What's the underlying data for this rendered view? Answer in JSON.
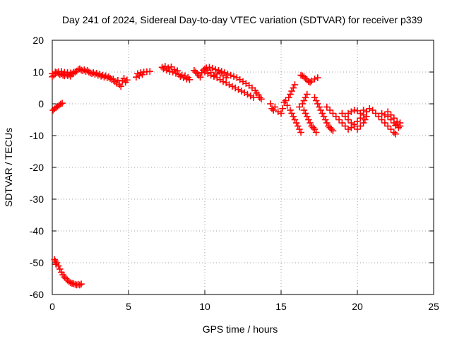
{
  "chart_data": {
    "type": "scatter",
    "title": "Day 241 of 2024, Sidereal Day-to-day VTEC variation (SDTVAR) for receiver p339",
    "xlabel": "GPS time / hours",
    "ylabel": "SDTVAR / TECUs",
    "xlim": [
      0,
      25
    ],
    "ylim": [
      -60,
      20
    ],
    "xticks": [
      0,
      5,
      10,
      15,
      20,
      25
    ],
    "yticks": [
      20,
      10,
      0,
      -10,
      -20,
      -30,
      -40,
      -50,
      -60
    ],
    "xtick_labels": [
      "0",
      "5",
      "10",
      "15",
      "20",
      "25"
    ],
    "ytick_labels": [
      "20",
      "10",
      "0",
      "-10",
      "-20",
      "-30",
      "-40",
      "-50",
      "-60"
    ],
    "grid": true,
    "marker": "+",
    "marker_color": "#ff0000",
    "series": [
      {
        "name": "SDTVAR",
        "points": [
          [
            0.0,
            8.5
          ],
          [
            0.1,
            9.0
          ],
          [
            0.2,
            9.5
          ],
          [
            0.3,
            9.8
          ],
          [
            0.4,
            9.6
          ],
          [
            0.5,
            9.2
          ],
          [
            0.6,
            9.5
          ],
          [
            0.7,
            9.0
          ],
          [
            0.8,
            8.8
          ],
          [
            0.9,
            9.3
          ],
          [
            1.0,
            8.9
          ],
          [
            1.1,
            9.1
          ],
          [
            1.2,
            8.7
          ],
          [
            1.3,
            9.4
          ],
          [
            1.4,
            9.6
          ],
          [
            1.5,
            10.0
          ],
          [
            1.6,
            10.3
          ],
          [
            1.7,
            10.8
          ],
          [
            1.8,
            11.0
          ],
          [
            1.9,
            10.6
          ],
          [
            2.0,
            10.4
          ],
          [
            2.1,
            10.7
          ],
          [
            2.2,
            10.2
          ],
          [
            2.3,
            10.5
          ],
          [
            2.4,
            10.0
          ],
          [
            2.5,
            9.7
          ],
          [
            2.6,
            9.5
          ],
          [
            2.7,
            9.8
          ],
          [
            2.8,
            9.3
          ],
          [
            2.9,
            9.6
          ],
          [
            3.0,
            9.0
          ],
          [
            3.1,
            9.3
          ],
          [
            3.2,
            8.7
          ],
          [
            3.3,
            9.0
          ],
          [
            3.4,
            8.4
          ],
          [
            3.5,
            8.8
          ],
          [
            3.6,
            8.2
          ],
          [
            3.7,
            8.5
          ],
          [
            3.8,
            8.0
          ],
          [
            3.9,
            7.6
          ],
          [
            4.0,
            7.8
          ],
          [
            4.1,
            7.0
          ],
          [
            4.2,
            6.5
          ],
          [
            4.3,
            7.4
          ],
          [
            4.4,
            6.0
          ],
          [
            4.5,
            5.5
          ],
          [
            4.6,
            7.2
          ],
          [
            4.7,
            8.0
          ],
          [
            4.8,
            6.8
          ],
          [
            4.9,
            7.5
          ],
          [
            0.0,
            9.5
          ],
          [
            0.2,
            10.0
          ],
          [
            0.4,
            10.1
          ],
          [
            0.6,
            10.2
          ],
          [
            0.8,
            9.9
          ],
          [
            1.0,
            9.8
          ],
          [
            1.2,
            9.7
          ],
          [
            1.4,
            9.9
          ],
          [
            0.05,
            -2.0
          ],
          [
            0.15,
            -1.6
          ],
          [
            0.25,
            -1.2
          ],
          [
            0.35,
            -0.8
          ],
          [
            0.45,
            -0.4
          ],
          [
            0.55,
            -0.1
          ],
          [
            0.65,
            0.2
          ],
          [
            5.6,
            9.5
          ],
          [
            5.8,
            9.8
          ],
          [
            6.0,
            10.0
          ],
          [
            6.2,
            10.1
          ],
          [
            6.4,
            10.2
          ],
          [
            5.5,
            8.4
          ],
          [
            5.7,
            8.8
          ],
          [
            5.9,
            9.2
          ],
          [
            7.2,
            11.5
          ],
          [
            7.3,
            11.0
          ],
          [
            7.4,
            11.8
          ],
          [
            7.5,
            10.6
          ],
          [
            7.6,
            11.3
          ],
          [
            7.7,
            10.2
          ],
          [
            7.8,
            11.6
          ],
          [
            7.9,
            10.0
          ],
          [
            8.0,
            10.8
          ],
          [
            8.1,
            9.6
          ],
          [
            8.2,
            10.4
          ],
          [
            8.3,
            9.2
          ],
          [
            8.4,
            8.6
          ],
          [
            8.5,
            9.0
          ],
          [
            8.6,
            8.2
          ],
          [
            8.7,
            8.8
          ],
          [
            8.8,
            7.8
          ],
          [
            8.9,
            8.3
          ],
          [
            9.0,
            7.6
          ],
          [
            9.3,
            10.5
          ],
          [
            9.4,
            10.0
          ],
          [
            9.5,
            9.6
          ],
          [
            9.6,
            9.0
          ],
          [
            9.7,
            8.4
          ],
          [
            9.8,
            9.8
          ],
          [
            9.9,
            10.6
          ],
          [
            10.0,
            11.0
          ],
          [
            10.1,
            11.3
          ],
          [
            10.2,
            10.6
          ],
          [
            10.3,
            11.5
          ],
          [
            10.4,
            9.8
          ],
          [
            10.5,
            11.2
          ],
          [
            10.6,
            9.0
          ],
          [
            10.7,
            10.8
          ],
          [
            10.8,
            8.2
          ],
          [
            10.9,
            10.5
          ],
          [
            11.0,
            7.6
          ],
          [
            11.1,
            10.2
          ],
          [
            11.2,
            7.0
          ],
          [
            11.3,
            9.8
          ],
          [
            11.4,
            6.6
          ],
          [
            11.5,
            9.4
          ],
          [
            11.6,
            6.0
          ],
          [
            11.7,
            9.0
          ],
          [
            11.8,
            5.5
          ],
          [
            11.9,
            8.6
          ],
          [
            12.0,
            5.0
          ],
          [
            12.1,
            8.2
          ],
          [
            12.2,
            4.5
          ],
          [
            12.3,
            7.6
          ],
          [
            12.4,
            4.0
          ],
          [
            12.5,
            7.0
          ],
          [
            12.6,
            3.5
          ],
          [
            12.7,
            6.4
          ],
          [
            12.8,
            3.0
          ],
          [
            12.9,
            5.8
          ],
          [
            13.0,
            2.5
          ],
          [
            13.1,
            5.0
          ],
          [
            13.2,
            2.0
          ],
          [
            13.3,
            4.2
          ],
          [
            13.4,
            3.4
          ],
          [
            13.5,
            2.8
          ],
          [
            13.6,
            2.0
          ],
          [
            13.7,
            1.5
          ],
          [
            10.0,
            10.0
          ],
          [
            10.2,
            9.5
          ],
          [
            10.4,
            9.0
          ],
          [
            10.6,
            8.6
          ],
          [
            10.8,
            9.4
          ],
          [
            11.0,
            9.8
          ],
          [
            11.2,
            8.8
          ],
          [
            11.4,
            8.2
          ],
          [
            14.3,
            0.0
          ],
          [
            14.4,
            -1.5
          ],
          [
            14.5,
            -2.0
          ],
          [
            14.6,
            -1.0
          ],
          [
            14.8,
            -2.5
          ],
          [
            15.0,
            -3.0
          ],
          [
            15.1,
            -1.5
          ],
          [
            15.2,
            0.5
          ],
          [
            15.3,
            1.0
          ],
          [
            15.4,
            -0.5
          ],
          [
            15.5,
            2.0
          ],
          [
            15.6,
            3.0
          ],
          [
            15.7,
            4.0
          ],
          [
            15.8,
            5.0
          ],
          [
            15.9,
            6.0
          ],
          [
            15.6,
            -2.0
          ],
          [
            15.7,
            -3.0
          ],
          [
            15.8,
            -4.0
          ],
          [
            15.9,
            -5.0
          ],
          [
            16.0,
            -6.0
          ],
          [
            16.1,
            -7.0
          ],
          [
            16.2,
            -8.0
          ],
          [
            16.3,
            -9.0
          ],
          [
            16.2,
            -1.0
          ],
          [
            16.4,
            0.0
          ],
          [
            16.5,
            1.0
          ],
          [
            16.6,
            2.0
          ],
          [
            16.7,
            3.0
          ],
          [
            16.5,
            -2.0
          ],
          [
            16.6,
            -3.0
          ],
          [
            16.7,
            -4.0
          ],
          [
            16.8,
            -5.0
          ],
          [
            16.9,
            -6.0
          ],
          [
            17.0,
            -7.0
          ],
          [
            17.1,
            -7.5
          ],
          [
            17.2,
            -8.0
          ],
          [
            17.3,
            -9.0
          ],
          [
            17.2,
            2.0
          ],
          [
            17.3,
            1.0
          ],
          [
            17.4,
            0.0
          ],
          [
            17.5,
            -1.0
          ],
          [
            17.6,
            -2.0
          ],
          [
            17.7,
            -3.0
          ],
          [
            17.8,
            -4.0
          ],
          [
            17.9,
            -5.0
          ],
          [
            18.0,
            -6.0
          ],
          [
            18.1,
            -7.0
          ],
          [
            18.2,
            -7.5
          ],
          [
            18.3,
            -8.0
          ],
          [
            18.4,
            -8.5
          ],
          [
            16.3,
            9.0
          ],
          [
            16.4,
            8.8
          ],
          [
            16.5,
            8.5
          ],
          [
            16.6,
            8.0
          ],
          [
            16.7,
            7.5
          ],
          [
            16.8,
            7.0
          ],
          [
            16.9,
            6.8
          ],
          [
            17.0,
            7.2
          ],
          [
            17.2,
            7.8
          ],
          [
            17.4,
            8.2
          ],
          [
            18.0,
            -1.0
          ],
          [
            18.2,
            -2.0
          ],
          [
            18.4,
            -3.0
          ],
          [
            18.6,
            -4.0
          ],
          [
            18.8,
            -5.0
          ],
          [
            19.0,
            -6.0
          ],
          [
            19.2,
            -7.0
          ],
          [
            19.4,
            -8.0
          ],
          [
            19.6,
            -7.5
          ],
          [
            19.8,
            -6.5
          ],
          [
            20.0,
            -5.5
          ],
          [
            20.2,
            -4.5
          ],
          [
            20.4,
            -3.5
          ],
          [
            20.6,
            -2.5
          ],
          [
            19.0,
            -3.0
          ],
          [
            19.2,
            -4.0
          ],
          [
            19.4,
            -5.0
          ],
          [
            19.6,
            -6.0
          ],
          [
            19.8,
            -7.0
          ],
          [
            20.0,
            -8.0
          ],
          [
            20.2,
            -7.0
          ],
          [
            20.4,
            -6.0
          ],
          [
            20.5,
            -5.0
          ],
          [
            20.6,
            -4.0
          ],
          [
            20.8,
            -1.5
          ],
          [
            21.0,
            -2.0
          ],
          [
            21.2,
            -3.0
          ],
          [
            21.4,
            -4.0
          ],
          [
            21.6,
            -5.0
          ],
          [
            21.8,
            -6.0
          ],
          [
            22.0,
            -7.0
          ],
          [
            22.2,
            -8.0
          ],
          [
            22.4,
            -9.0
          ],
          [
            22.5,
            -9.5
          ],
          [
            21.6,
            -3.0
          ],
          [
            21.8,
            -3.5
          ],
          [
            22.0,
            -4.0
          ],
          [
            22.2,
            -5.0
          ],
          [
            22.4,
            -6.0
          ],
          [
            22.6,
            -6.5
          ],
          [
            22.8,
            -7.0
          ],
          [
            22.0,
            -2.5
          ],
          [
            22.2,
            -3.5
          ],
          [
            22.4,
            -4.5
          ],
          [
            22.6,
            -5.5
          ],
          [
            22.8,
            -6.0
          ],
          [
            22.7,
            -7.5
          ],
          [
            22.5,
            -6.8
          ],
          [
            19.4,
            -3.0
          ],
          [
            19.6,
            -2.5
          ],
          [
            19.8,
            -2.0
          ],
          [
            20.0,
            -2.2
          ],
          [
            20.2,
            -3.0
          ],
          [
            20.4,
            -2.0
          ],
          [
            20.6,
            -2.5
          ],
          [
            0.2,
            -49.5
          ],
          [
            0.3,
            -50.0
          ],
          [
            0.4,
            -51.0
          ],
          [
            0.5,
            -52.0
          ],
          [
            0.6,
            -53.0
          ],
          [
            0.7,
            -53.8
          ],
          [
            0.8,
            -54.5
          ],
          [
            0.9,
            -55.0
          ],
          [
            1.0,
            -55.5
          ],
          [
            1.1,
            -56.0
          ],
          [
            1.2,
            -56.3
          ],
          [
            1.3,
            -56.5
          ],
          [
            1.4,
            -56.6
          ],
          [
            1.5,
            -56.8
          ],
          [
            1.6,
            -57.0
          ],
          [
            1.7,
            -56.8
          ],
          [
            1.8,
            -57.0
          ],
          [
            1.9,
            -56.7
          ],
          [
            0.15,
            -49.0
          ],
          [
            0.25,
            -50.5
          ]
        ]
      }
    ]
  }
}
